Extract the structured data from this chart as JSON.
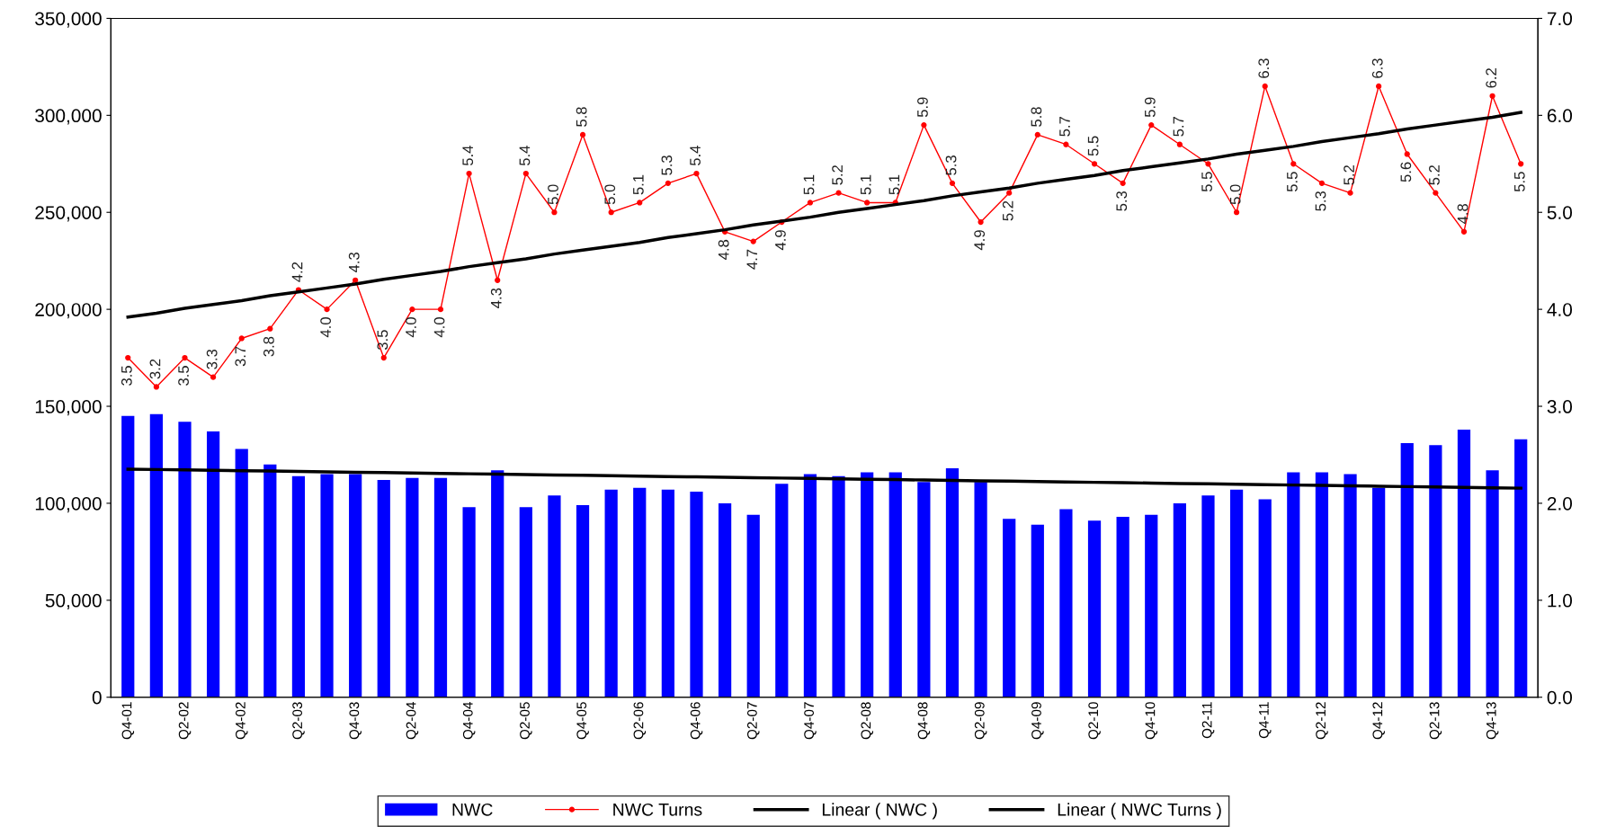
{
  "chart_data": {
    "type": "bar",
    "categories": [
      "Q4-01",
      null,
      "Q2-02",
      null,
      "Q4-02",
      null,
      "Q2-03",
      null,
      "Q4-03",
      null,
      "Q2-04",
      null,
      "Q4-04",
      null,
      "Q2-05",
      null,
      "Q4-05",
      null,
      "Q2-06",
      null,
      "Q4-06",
      null,
      "Q2-07",
      null,
      "Q4-07",
      null,
      "Q2-08",
      null,
      "Q4-08",
      null,
      "Q2-09",
      null,
      "Q4-09",
      null,
      "Q2-10",
      null,
      "Q4-10",
      null,
      "Q2-11",
      null,
      "Q4-11",
      null,
      "Q2-12",
      null,
      "Q4-12",
      null,
      "Q2-13",
      null,
      "Q4-13",
      null
    ],
    "series": [
      {
        "name": "NWC",
        "color": "#0000ff",
        "values": [
          145000,
          146000,
          142000,
          137000,
          128000,
          120000,
          114000,
          115000,
          115000,
          112000,
          113000,
          113000,
          98000,
          117000,
          98000,
          104000,
          99000,
          107000,
          108000,
          107000,
          106000,
          100000,
          94000,
          110000,
          115000,
          114000,
          116000,
          116000,
          111000,
          118000,
          111000,
          92000,
          89000,
          97000,
          91000,
          93000,
          94000,
          100000,
          104000,
          107000,
          102000,
          116000,
          116000,
          115000,
          108000,
          131000,
          130000,
          138000,
          117000,
          133000
        ]
      },
      {
        "name": "NWC Turns",
        "type": "line",
        "axis": "y2",
        "color": "#ff0000",
        "marker": "circle",
        "value_labels": [
          "3.5",
          "3.2",
          "3.5",
          "3.3",
          "3.7",
          "3.8",
          "4.2",
          "4.0",
          "4.3",
          "3.5",
          "4.0",
          "4.0",
          "5.4",
          "4.3",
          "5.4",
          "5.0",
          "5.8",
          "5.0",
          "5.1",
          "5.3",
          "5.4",
          "4.8",
          "4.7",
          "4.9",
          "5.1",
          "5.2",
          "5.1",
          "5.1",
          "5.9",
          "5.3",
          "4.9",
          "5.2",
          "5.8",
          "5.7",
          "5.5",
          "5.3",
          "5.9",
          "5.7",
          "5.5",
          "5.0",
          "6.3",
          "5.5",
          "5.3",
          "5.2",
          "6.3",
          "5.6",
          "5.2",
          "4.8",
          "6.2",
          "5.5"
        ],
        "values": [
          3.5,
          3.2,
          3.5,
          3.3,
          3.7,
          3.8,
          4.2,
          4.0,
          4.3,
          3.5,
          4.0,
          4.0,
          5.4,
          4.3,
          5.4,
          5.0,
          5.8,
          5.0,
          5.1,
          5.3,
          5.4,
          4.8,
          4.7,
          4.9,
          5.1,
          5.2,
          5.1,
          5.1,
          5.9,
          5.3,
          4.9,
          5.2,
          5.8,
          5.7,
          5.5,
          5.3,
          5.9,
          5.7,
          5.5,
          5.0,
          6.3,
          5.5,
          5.3,
          5.2,
          6.3,
          5.6,
          5.2,
          4.8,
          6.2,
          5.5
        ]
      },
      {
        "name": "Linear ( NWC )",
        "type": "line",
        "color": "#000000",
        "values": [
          117600,
          117400,
          117200,
          117000,
          116800,
          116600,
          116400,
          116200,
          116000,
          115800,
          115600,
          115400,
          115200,
          115000,
          114800,
          114600,
          114400,
          114200,
          114000,
          113800,
          113600,
          113400,
          113200,
          113000,
          112800,
          112600,
          112400,
          112200,
          112000,
          111800,
          111600,
          111400,
          111200,
          111000,
          110800,
          110600,
          110400,
          110200,
          110000,
          109800,
          109600,
          109400,
          109200,
          109000,
          108800,
          108600,
          108400,
          108200,
          108000,
          107800
        ]
      },
      {
        "name": "Linear ( NWC Turns )",
        "type": "line",
        "axis": "y2",
        "color": "#000000",
        "values": [
          3.92,
          3.96,
          4.01,
          4.05,
          4.09,
          4.14,
          4.18,
          4.22,
          4.26,
          4.31,
          4.35,
          4.39,
          4.44,
          4.48,
          4.52,
          4.57,
          4.61,
          4.65,
          4.69,
          4.74,
          4.78,
          4.82,
          4.87,
          4.91,
          4.95,
          5.0,
          5.04,
          5.08,
          5.12,
          5.17,
          5.21,
          5.25,
          5.3,
          5.34,
          5.38,
          5.43,
          5.47,
          5.51,
          5.55,
          5.6,
          5.64,
          5.68,
          5.73,
          5.77,
          5.81,
          5.86,
          5.9,
          5.94,
          5.98,
          6.03
        ]
      }
    ],
    "ylim": [
      0,
      350000
    ],
    "yticks": [
      {
        "value": 0,
        "label": "0"
      },
      {
        "value": 50000,
        "label": "50,000"
      },
      {
        "value": 100000,
        "label": "100,000"
      },
      {
        "value": 150000,
        "label": "150,000"
      },
      {
        "value": 200000,
        "label": "200,000"
      },
      {
        "value": 250000,
        "label": "250,000"
      },
      {
        "value": 300000,
        "label": "300,000"
      },
      {
        "value": 350000,
        "label": "350,000"
      }
    ],
    "y2lim": [
      0,
      7
    ],
    "y2ticks": [
      {
        "value": 0,
        "label": "0.0"
      },
      {
        "value": 1,
        "label": "1.0"
      },
      {
        "value": 2,
        "label": "2.0"
      },
      {
        "value": 3,
        "label": "3.0"
      },
      {
        "value": 4,
        "label": "4.0"
      },
      {
        "value": 5,
        "label": "5.0"
      },
      {
        "value": 6,
        "label": "6.0"
      },
      {
        "value": 7,
        "label": "7.0"
      }
    ],
    "grid": false,
    "legend": "bottom"
  }
}
